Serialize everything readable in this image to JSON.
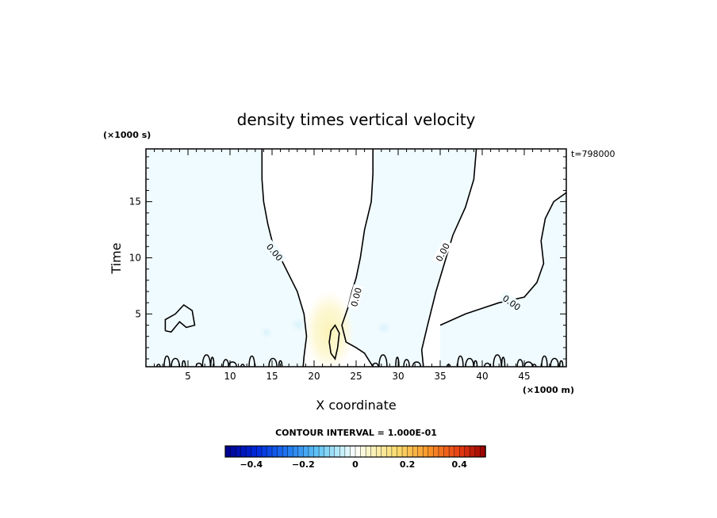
{
  "chart_data": {
    "type": "heatmap",
    "title": "density times vertical velocity",
    "xlabel": "X coordinate",
    "ylabel": "Time",
    "x_unit": "(×1000 m)",
    "y_unit": "(×1000 s)",
    "time_stamp": "t=798000",
    "xlim": [
      0,
      50
    ],
    "ylim": [
      0.3,
      19.7
    ],
    "x_ticks": [
      5,
      10,
      15,
      20,
      25,
      30,
      35,
      40,
      45
    ],
    "y_ticks": [
      5,
      10,
      15
    ],
    "x_tick_labels": [
      "5",
      "10",
      "15",
      "20",
      "25",
      "30",
      "35",
      "40",
      "45"
    ],
    "y_tick_labels": [
      "5",
      "10",
      "15"
    ],
    "contour_interval_text": "CONTOUR INTERVAL = 1.000E-01",
    "contour_level_label": "0.00",
    "contour_label_points": [
      {
        "text": "0.00",
        "x": 15.3,
        "y": 10.5,
        "angle": 50
      },
      {
        "text": "0.00",
        "x": 25.0,
        "y": 6.5,
        "angle": -75
      },
      {
        "text": "0.00",
        "x": 35.3,
        "y": 10.5,
        "angle": -62
      },
      {
        "text": "0.00",
        "x": 43.5,
        "y": 6.0,
        "angle": 35
      }
    ],
    "colorbar": {
      "min": -0.5,
      "max": 0.5,
      "tick_values": [
        -0.4,
        -0.2,
        0,
        0.2,
        0.4
      ],
      "tick_labels": [
        "−0.4",
        "−0.2",
        "0",
        "0.2",
        "0.4"
      ]
    },
    "zero_contours": [
      [
        [
          13.8,
          19.7
        ],
        [
          13.8,
          17.0
        ],
        [
          14.0,
          15.0
        ],
        [
          14.5,
          13.0
        ],
        [
          15.0,
          11.5
        ],
        [
          16.0,
          10.0
        ],
        [
          17.0,
          8.5
        ],
        [
          18.0,
          7.0
        ],
        [
          18.8,
          5.0
        ],
        [
          19.1,
          3.0
        ],
        [
          18.8,
          1.2
        ],
        [
          18.7,
          0.3
        ]
      ],
      [
        [
          27.0,
          19.7
        ],
        [
          27.0,
          17.5
        ],
        [
          26.8,
          15.0
        ],
        [
          26.0,
          12.5
        ],
        [
          25.5,
          10.0
        ],
        [
          25.0,
          8.2
        ],
        [
          24.5,
          7.0
        ],
        [
          24.0,
          5.5
        ],
        [
          23.3,
          4.0
        ],
        [
          23.8,
          2.5
        ],
        [
          25.0,
          2.0
        ],
        [
          26.0,
          1.5
        ],
        [
          27.0,
          0.3
        ]
      ],
      [
        [
          39.3,
          19.7
        ],
        [
          39.0,
          17.0
        ],
        [
          38.0,
          14.5
        ],
        [
          36.5,
          12.0
        ],
        [
          35.5,
          9.5
        ],
        [
          34.5,
          7.0
        ],
        [
          33.5,
          4.0
        ],
        [
          32.8,
          1.8
        ],
        [
          33.0,
          0.3
        ]
      ],
      [
        [
          50.0,
          15.8
        ],
        [
          48.5,
          15.0
        ],
        [
          47.5,
          13.5
        ],
        [
          47.0,
          11.5
        ],
        [
          47.3,
          9.5
        ],
        [
          46.5,
          7.8
        ],
        [
          45.0,
          6.5
        ],
        [
          42.0,
          6.0
        ],
        [
          40.0,
          5.5
        ],
        [
          38.0,
          5.0
        ],
        [
          36.5,
          4.5
        ],
        [
          35.0,
          4.0
        ]
      ],
      [
        [
          2.3,
          3.5
        ],
        [
          2.3,
          4.5
        ],
        [
          3.5,
          5.0
        ],
        [
          4.5,
          5.8
        ],
        [
          5.5,
          5.3
        ],
        [
          5.8,
          4.0
        ],
        [
          4.8,
          3.8
        ],
        [
          4.0,
          4.3
        ],
        [
          3.0,
          3.4
        ],
        [
          2.3,
          3.5
        ]
      ],
      [
        [
          22.0,
          1.5
        ],
        [
          21.8,
          2.5
        ],
        [
          22.0,
          3.5
        ],
        [
          22.5,
          4.0
        ],
        [
          23.0,
          3.3
        ],
        [
          22.8,
          2.0
        ],
        [
          22.5,
          1.0
        ],
        [
          22.0,
          1.5
        ]
      ]
    ]
  }
}
